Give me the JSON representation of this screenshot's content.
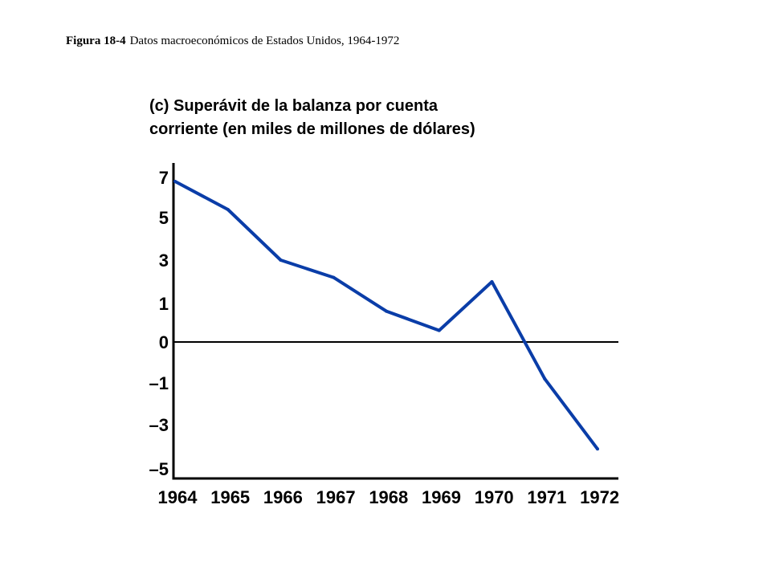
{
  "figure": {
    "number": "Figura 18-4",
    "caption": "Datos macroeconómicos de Estados Unidos, 1964-1972"
  },
  "chart_data": {
    "type": "line",
    "title_lines": [
      "(c) Superávit de la balanza por cuenta",
      "corriente (en miles de millones de dólares)"
    ],
    "xlabel": "",
    "ylabel": "",
    "categories": [
      "1964",
      "1965",
      "1966",
      "1967",
      "1968",
      "1969",
      "1970",
      "1971",
      "1972"
    ],
    "y_ticks": [
      {
        "value": 7,
        "label": "7"
      },
      {
        "value": 5,
        "label": "5"
      },
      {
        "value": 3,
        "label": "3"
      },
      {
        "value": 1,
        "label": "1"
      },
      {
        "value": 0,
        "label": "0"
      },
      {
        "value": -1,
        "label": "–1"
      },
      {
        "value": -3,
        "label": "–3"
      },
      {
        "value": -5,
        "label": "–5"
      }
    ],
    "series": [
      {
        "x": [
          "1964",
          "1965",
          "1966",
          "1967",
          "1968",
          "1969",
          "1970",
          "1971",
          "1972"
        ],
        "values": [
          6.8,
          5.4,
          3.0,
          2.2,
          0.8,
          0.3,
          2.0,
          -0.9,
          -4.1
        ],
        "color": "#0a3da8"
      }
    ],
    "ylim": [
      -5,
      7
    ],
    "zero_line": true,
    "grid": false,
    "legend": "none"
  }
}
